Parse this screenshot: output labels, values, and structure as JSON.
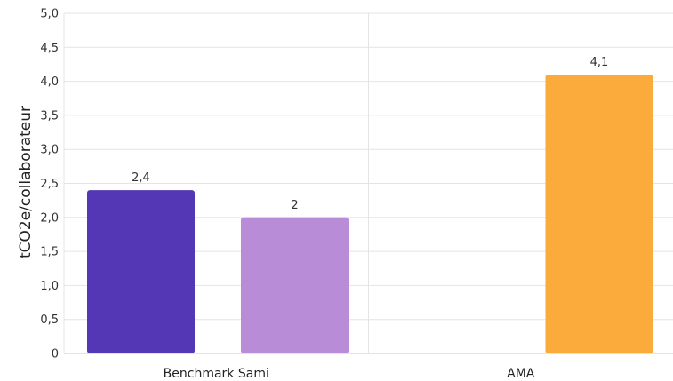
{
  "chart_data": {
    "type": "bar",
    "categories": [
      "Benchmark Sami",
      "AMA"
    ],
    "ylabel": "tCO2e/collaborateur",
    "ylim": [
      0,
      5
    ],
    "yticks": [
      "0",
      "0,5",
      "1,0",
      "1,5",
      "2,0",
      "2,5",
      "3,0",
      "3,5",
      "4,0",
      "4,5",
      "5,0"
    ],
    "grid": true,
    "bars": [
      {
        "category": "Benchmark Sami",
        "slot": 0,
        "value": 2.4,
        "label": "2,4",
        "color": "#5337b5"
      },
      {
        "category": "Benchmark Sami",
        "slot": 1,
        "value": 2.0,
        "label": "2",
        "color": "#b88cd6"
      },
      {
        "category": "AMA",
        "slot": 1,
        "value": 4.1,
        "label": "4,1",
        "color": "#fbaa3c"
      }
    ]
  }
}
